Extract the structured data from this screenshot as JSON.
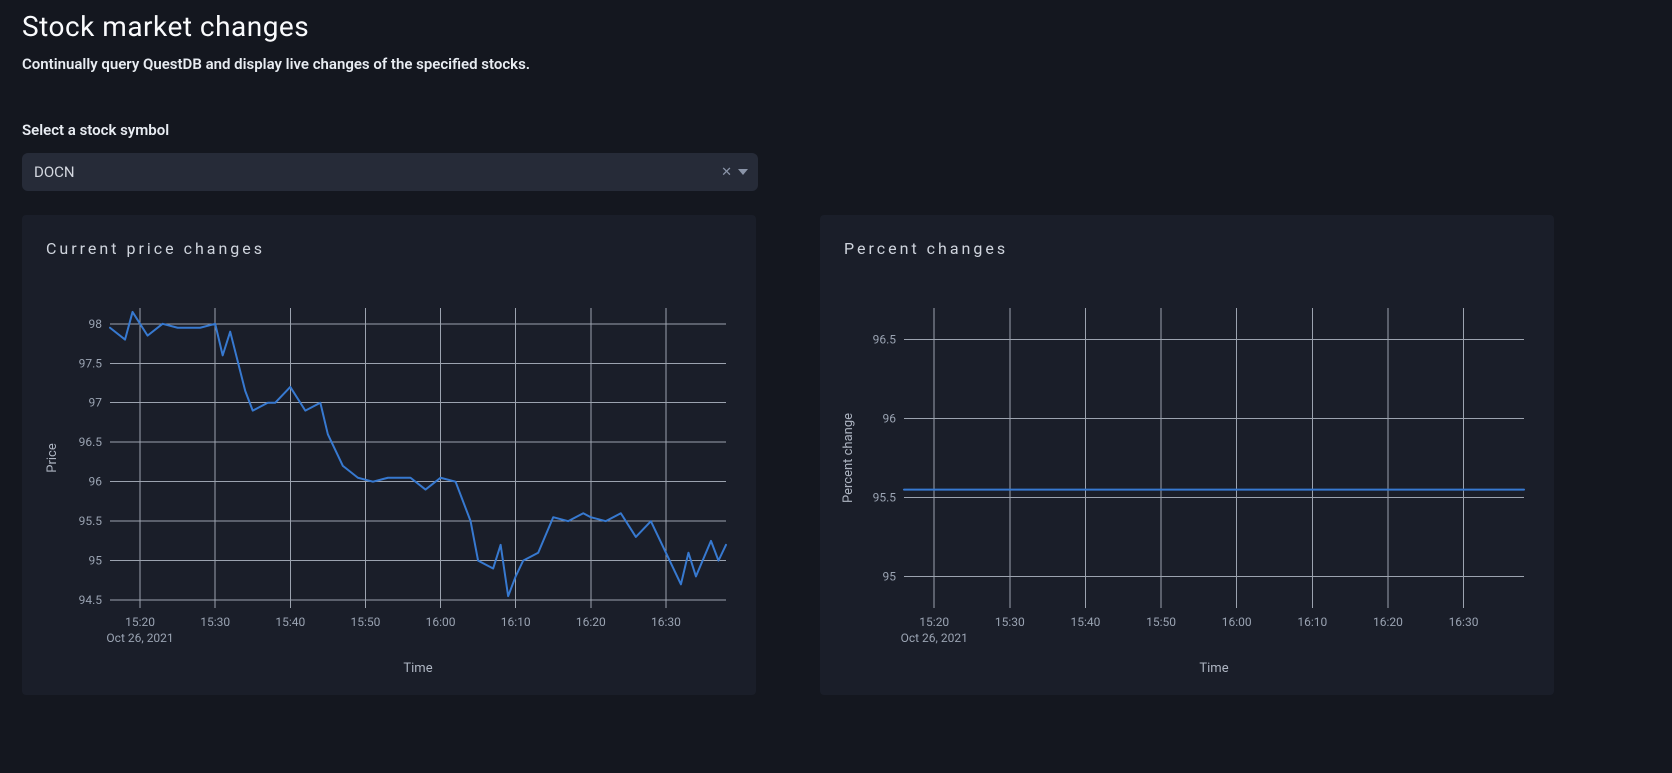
{
  "header": {
    "title": "Stock market changes",
    "subtitle": "Continually query QuestDB and display live changes of the specified stocks."
  },
  "selector": {
    "label": "Select a stock symbol",
    "value": "DOCN"
  },
  "colors": {
    "page_bg": "#14171f",
    "card_bg": "#1a1e29",
    "select_bg": "#262b38",
    "grid": "#9ca3af",
    "tick_text": "#9aa3b2",
    "series": "#3779d0"
  },
  "price_chart": {
    "title": "Current price changes",
    "type": "line",
    "xlabel": "Time",
    "ylabel": "Price",
    "x_date_label": "Oct 26, 2021",
    "x_ticks": [
      "15:20",
      "15:30",
      "15:40",
      "15:50",
      "16:00",
      "16:10",
      "16:20",
      "16:30"
    ],
    "y_ticks": [
      94.5,
      95,
      95.5,
      96,
      96.5,
      97,
      97.5,
      98
    ],
    "ylim": [
      94.4,
      98.2
    ],
    "xlim_minutes": [
      916,
      998
    ],
    "line_color": "#3779d0",
    "line_width": 2,
    "grid_color": "#9ca3af",
    "background_color": "#1a1e29",
    "series_minutes": [
      916,
      918,
      919,
      921,
      923,
      925,
      928,
      930,
      931,
      932,
      934,
      935,
      937,
      938,
      940,
      942,
      944,
      945,
      947,
      949,
      951,
      953,
      956,
      958,
      960,
      962,
      964,
      965,
      967,
      968,
      969,
      970,
      971,
      973,
      975,
      977,
      979,
      980,
      982,
      984,
      986,
      988,
      990,
      992,
      993,
      994,
      996,
      997,
      998
    ],
    "series_values": [
      97.95,
      97.8,
      98.15,
      97.85,
      98.0,
      97.95,
      97.95,
      98.0,
      97.6,
      97.9,
      97.15,
      96.9,
      97.0,
      97.0,
      97.2,
      96.9,
      97.0,
      96.6,
      96.2,
      96.05,
      96.0,
      96.05,
      96.05,
      95.9,
      96.05,
      96.0,
      95.5,
      95.0,
      94.9,
      95.2,
      94.55,
      94.8,
      95.0,
      95.1,
      95.55,
      95.5,
      95.6,
      95.55,
      95.5,
      95.6,
      95.3,
      95.5,
      95.1,
      94.7,
      95.1,
      94.8,
      95.25,
      95.0,
      95.2
    ]
  },
  "percent_chart": {
    "title": "Percent changes",
    "type": "line",
    "xlabel": "Time",
    "ylabel": "Percent change",
    "x_date_label": "Oct 26, 2021",
    "x_ticks": [
      "15:20",
      "15:30",
      "15:40",
      "15:50",
      "16:00",
      "16:10",
      "16:20",
      "16:30"
    ],
    "y_ticks": [
      95,
      95.5,
      96,
      96.5
    ],
    "ylim": [
      94.8,
      96.7
    ],
    "xlim_minutes": [
      916,
      998
    ],
    "line_color": "#3779d0",
    "line_width": 2,
    "grid_color": "#9ca3af",
    "background_color": "#1a1e29",
    "series_minutes": [
      916,
      998
    ],
    "series_values": [
      95.55,
      95.55
    ]
  }
}
